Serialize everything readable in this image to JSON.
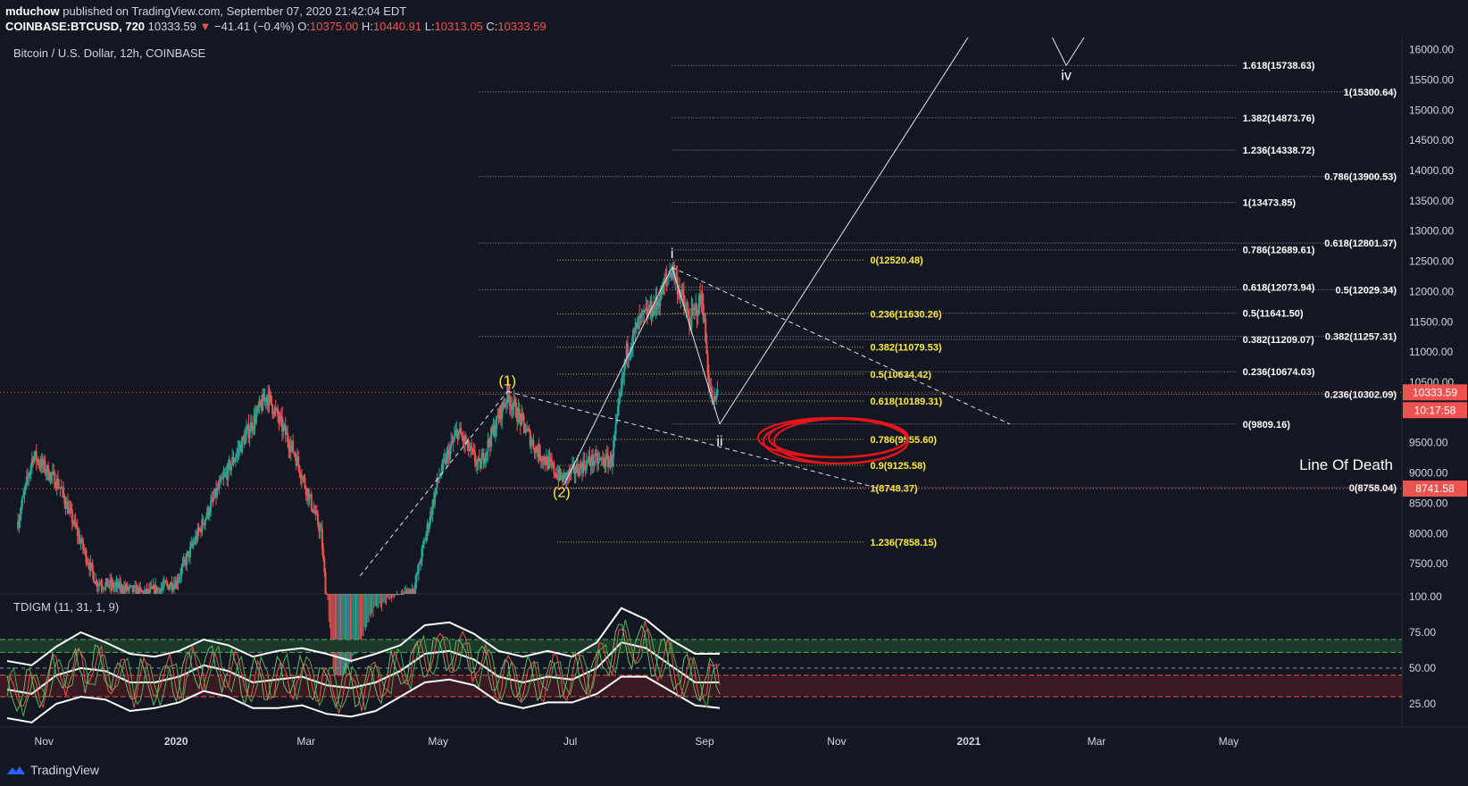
{
  "header": {
    "author": "mduchow",
    "published_text": "published on TradingView.com, September 07, 2020 21:42:04 EDT",
    "symbol": "COINBASE:BTCUSD, 720",
    "last": "10333.59",
    "change_arrow": "▼",
    "change": "−41.41 (−0.4%)",
    "o_label": "O:",
    "o": "10375.00",
    "h_label": "H:",
    "h": "10440.91",
    "l_label": "L:",
    "l": "10313.05",
    "c_label": "C:",
    "c": "10333.59"
  },
  "brand": "TradingView",
  "colors": {
    "background": "#131722",
    "up": "#26a69a",
    "down": "#ef5350",
    "fib_yellow": "#ffeb3b",
    "circle_red": "#e8141c",
    "text": "#d1d4dc"
  },
  "chart_data": [
    {
      "type": "candlestick",
      "title": "Bitcoin / U.S. Dollar, 12h, COINBASE",
      "ylim": [
        7000,
        16200
      ],
      "x_ticks": [
        "Nov",
        "2020",
        "Mar",
        "May",
        "Jul",
        "Sep",
        "Nov",
        "2021",
        "Mar",
        "May"
      ],
      "y_ticks": [
        "16000.00",
        "15500.00",
        "15000.00",
        "14500.00",
        "14000.00",
        "13500.00",
        "13000.00",
        "12500.00",
        "12000.00",
        "11500.00",
        "11000.00",
        "10500.00",
        "9500.00",
        "9000.00",
        "8500.00",
        "8000.00",
        "7500.00"
      ],
      "price_labels": {
        "current": "10333.59",
        "countdown": "10:17:58",
        "line_of_death": "8741.58"
      },
      "price_path": [
        {
          "x": "2019-10-20",
          "y": 8200
        },
        {
          "x": "2019-10-27",
          "y": 9300
        },
        {
          "x": "2019-11-08",
          "y": 8800
        },
        {
          "x": "2019-11-25",
          "y": 7200
        },
        {
          "x": "2019-12-18",
          "y": 7000
        },
        {
          "x": "2020-01-01",
          "y": 7200
        },
        {
          "x": "2020-01-20",
          "y": 8700
        },
        {
          "x": "2020-02-12",
          "y": 10300
        },
        {
          "x": "2020-02-25",
          "y": 9300
        },
        {
          "x": "2020-03-08",
          "y": 8000
        },
        {
          "x": "2020-03-14",
          "y": 5200
        },
        {
          "x": "2020-04-01",
          "y": 6600
        },
        {
          "x": "2020-04-20",
          "y": 7100
        },
        {
          "x": "2020-05-01",
          "y": 8900
        },
        {
          "x": "2020-05-10",
          "y": 9700
        },
        {
          "x": "2020-05-20",
          "y": 9100
        },
        {
          "x": "2020-06-02",
          "y": 10300
        },
        {
          "x": "2020-06-15",
          "y": 9400
        },
        {
          "x": "2020-06-27",
          "y": 8900
        },
        {
          "x": "2020-07-10",
          "y": 9200
        },
        {
          "x": "2020-07-20",
          "y": 9200
        },
        {
          "x": "2020-07-27",
          "y": 11000
        },
        {
          "x": "2020-08-02",
          "y": 11500
        },
        {
          "x": "2020-08-10",
          "y": 11800
        },
        {
          "x": "2020-08-17",
          "y": 12400
        },
        {
          "x": "2020-08-25",
          "y": 11500
        },
        {
          "x": "2020-08-31",
          "y": 11900
        },
        {
          "x": "2020-09-03",
          "y": 10500
        },
        {
          "x": "2020-09-05",
          "y": 10100
        },
        {
          "x": "2020-09-07",
          "y": 10333.59
        }
      ],
      "wave_labels": [
        {
          "text": "(1)",
          "x": "2020-06-02",
          "y": 10450,
          "color": "yellow"
        },
        {
          "text": "(2)",
          "x": "2020-06-27",
          "y": 8600,
          "color": "yellow"
        },
        {
          "text": "i",
          "x": "2020-08-17",
          "y": 12550,
          "color": "white"
        },
        {
          "text": "ii",
          "x": "2020-09-08",
          "y": 9450,
          "color": "white"
        },
        {
          "text": "iv",
          "x": "2021-02-15",
          "y": 15500,
          "color": "white"
        }
      ],
      "wave_projection": [
        {
          "x": "2020-09-08",
          "y": 9809.16
        },
        {
          "x": "2021-01-06",
          "y": 16500
        },
        {
          "x": "2021-02-03",
          "y": 16600
        },
        {
          "x": "2021-02-15",
          "y": 15738.63
        },
        {
          "x": "2021-02-25",
          "y": 16300
        }
      ],
      "fib_yellow": [
        {
          "label": "0(12520.48)",
          "value": 12520.48
        },
        {
          "label": "0.236(11630.26)",
          "value": 11630.26
        },
        {
          "label": "0.382(11079.53)",
          "value": 11079.53
        },
        {
          "label": "0.5(10634.42)",
          "value": 10634.42
        },
        {
          "label": "0.618(10189.31)",
          "value": 10189.31
        },
        {
          "label": "0.786(9555.60)",
          "value": 9555.6
        },
        {
          "label": "0.9(9125.58)",
          "value": 9125.58
        },
        {
          "label": "1(8748.37)",
          "value": 8748.37
        },
        {
          "label": "1.236(7858.15)",
          "value": 7858.15
        }
      ],
      "fib_extension": [
        {
          "label": "1.618(15738.63)",
          "value": 15738.63
        },
        {
          "label": "1.382(14873.76)",
          "value": 14873.76
        },
        {
          "label": "1.236(14338.72)",
          "value": 14338.72
        },
        {
          "label": "1(13473.85)",
          "value": 13473.85
        },
        {
          "label": "0.786(12689.61)",
          "value": 12689.61
        },
        {
          "label": "0.618(12073.94)",
          "value": 12073.94
        },
        {
          "label": "0.5(11641.50)",
          "value": 11641.5
        },
        {
          "label": "0.382(11209.07)",
          "value": 11209.07
        },
        {
          "label": "0.236(10674.03)",
          "value": 10674.03
        },
        {
          "label": "0(9809.16)",
          "value": 9809.16
        }
      ],
      "fib_major": [
        {
          "label": "1(15300.64)",
          "value": 15300.64
        },
        {
          "label": "0.786(13900.53)",
          "value": 13900.53
        },
        {
          "label": "0.618(12801.37)",
          "value": 12801.37
        },
        {
          "label": "0.5(12029.34)",
          "value": 12029.34
        },
        {
          "label": "0.382(11257.31)",
          "value": 11257.31
        },
        {
          "label": "0.236(10302.09)",
          "value": 10302.09
        },
        {
          "label": "0(8758.04)",
          "value": 8758.04
        }
      ],
      "annotation": "Line Of Death",
      "trendlines": [
        {
          "from": {
            "x": "2020-08-17",
            "y": 12400
          },
          "to": {
            "x": "2021-01-20",
            "y": 9809.16
          }
        },
        {
          "from": {
            "x": "2020-06-02",
            "y": 10350
          },
          "to": {
            "x": "2020-11-20",
            "y": 8750
          }
        }
      ]
    },
    {
      "type": "line",
      "title": "TDIGM (11, 31, 1, 9)",
      "ylim": [
        10,
        100
      ],
      "y_ticks": [
        "100.00",
        "75.00",
        "50.00",
        "25.00"
      ],
      "levels": [
        70,
        61,
        50,
        45,
        30
      ],
      "series": [
        {
          "values": [
            55,
            52,
            65,
            75,
            68,
            60,
            58,
            62,
            70,
            66,
            58,
            62,
            64,
            60,
            55,
            60,
            66,
            80,
            82,
            74,
            62,
            58,
            62,
            58,
            68,
            92,
            84,
            70,
            60,
            60
          ]
        },
        {
          "values": [
            35,
            32,
            45,
            50,
            48,
            40,
            40,
            44,
            52,
            48,
            40,
            42,
            44,
            38,
            36,
            40,
            48,
            60,
            62,
            56,
            44,
            40,
            44,
            42,
            50,
            68,
            64,
            52,
            40,
            40
          ]
        },
        {
          "values": [
            15,
            12,
            25,
            30,
            28,
            20,
            22,
            26,
            34,
            30,
            22,
            22,
            24,
            18,
            16,
            20,
            30,
            40,
            42,
            38,
            26,
            22,
            26,
            26,
            32,
            44,
            44,
            34,
            24,
            22
          ]
        }
      ]
    }
  ]
}
